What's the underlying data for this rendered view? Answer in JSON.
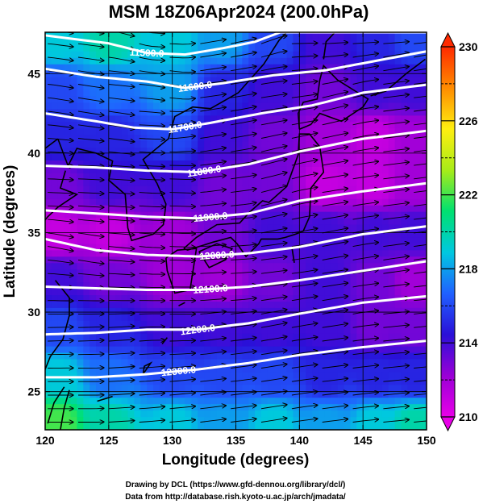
{
  "chart_data": {
    "type": "heatmap",
    "title": "MSM 18Z06Apr2024 (200.0hPa)",
    "xlabel": "Longitude (degrees)",
    "ylabel": "Latitude  (degrees)",
    "xlim": [
      120,
      150
    ],
    "ylim": [
      22.6,
      47.6
    ],
    "x_ticks": [
      "120",
      "125",
      "130",
      "135",
      "140",
      "145",
      "150"
    ],
    "y_ticks": [
      "25",
      "30",
      "35",
      "40",
      "45"
    ],
    "colorbar": {
      "range": [
        210,
        230
      ],
      "ticks": [
        "210",
        "214",
        "218",
        "222",
        "226",
        "230"
      ],
      "colors": [
        "#e800e8",
        "#9a00d6",
        "#2a10d8",
        "#2060ff",
        "#00c8e0",
        "#00e070",
        "#a8ec18",
        "#ffee10",
        "#ff8c00",
        "#ff2a00"
      ]
    },
    "contours": [
      {
        "label": "11500.0",
        "lon_at_label": 128.0,
        "points": [
          [
            120,
            47.4
          ],
          [
            125,
            46.9
          ],
          [
            128,
            46.3
          ],
          [
            131,
            46.2
          ],
          [
            134,
            46.6
          ],
          [
            136.5,
            47.0
          ],
          [
            138.5,
            47.6
          ]
        ]
      },
      {
        "label": "11600.0",
        "lon_at_label": 131.8,
        "points": [
          [
            120,
            45.3
          ],
          [
            124,
            44.8
          ],
          [
            128,
            44.5
          ],
          [
            131,
            44.1
          ],
          [
            134,
            44.4
          ],
          [
            138,
            44.9
          ],
          [
            142,
            45.2
          ],
          [
            146,
            45.8
          ],
          [
            150,
            46.4
          ]
        ]
      },
      {
        "label": "11700.0",
        "lon_at_label": 131.0,
        "points": [
          [
            120,
            42.5
          ],
          [
            124,
            42.0
          ],
          [
            127,
            41.6
          ],
          [
            130,
            41.5
          ],
          [
            133,
            41.9
          ],
          [
            137,
            42.5
          ],
          [
            141,
            43.0
          ],
          [
            145,
            43.8
          ],
          [
            150,
            44.3
          ]
        ]
      },
      {
        "label": "11800.0",
        "lon_at_label": 132.5,
        "points": [
          [
            120,
            39.2
          ],
          [
            124,
            39.1
          ],
          [
            128,
            38.9
          ],
          [
            132,
            38.8
          ],
          [
            136,
            39.3
          ],
          [
            140,
            40.1
          ],
          [
            145,
            40.9
          ],
          [
            150,
            41.4
          ]
        ]
      },
      {
        "label": "11900.0",
        "lon_at_label": 133.0,
        "points": [
          [
            120,
            36.4
          ],
          [
            124,
            36.2
          ],
          [
            128,
            36.0
          ],
          [
            132,
            35.9
          ],
          [
            136,
            36.2
          ],
          [
            140,
            37.0
          ],
          [
            145,
            37.6
          ],
          [
            150,
            38.1
          ]
        ]
      },
      {
        "label": "12000.0",
        "lon_at_label": 133.5,
        "points": [
          [
            120,
            34.6
          ],
          [
            124,
            33.9
          ],
          [
            128,
            33.6
          ],
          [
            132,
            33.5
          ],
          [
            136,
            33.7
          ],
          [
            140,
            34.1
          ],
          [
            145,
            34.9
          ],
          [
            150,
            35.4
          ]
        ]
      },
      {
        "label": "12100.0",
        "lon_at_label": 133.0,
        "points": [
          [
            120,
            31.6
          ],
          [
            124,
            31.5
          ],
          [
            128,
            31.4
          ],
          [
            132,
            31.4
          ],
          [
            136,
            31.6
          ],
          [
            140,
            32.0
          ],
          [
            145,
            32.6
          ],
          [
            150,
            33.2
          ]
        ]
      },
      {
        "label": "12200.0",
        "lon_at_label": 132.0,
        "points": [
          [
            120,
            28.6
          ],
          [
            124,
            28.7
          ],
          [
            128,
            28.9
          ],
          [
            132,
            28.9
          ],
          [
            136,
            29.3
          ],
          [
            140,
            29.9
          ],
          [
            145,
            30.6
          ],
          [
            150,
            31.0
          ]
        ]
      },
      {
        "label": "12300.0",
        "lon_at_label": 130.5,
        "points": [
          [
            120,
            25.9
          ],
          [
            124,
            25.9
          ],
          [
            128,
            26.1
          ],
          [
            132,
            26.4
          ],
          [
            136,
            26.8
          ],
          [
            140,
            27.3
          ],
          [
            145,
            27.8
          ],
          [
            150,
            28.2
          ]
        ]
      }
    ],
    "color_field": [
      {
        "lon": 121,
        "lat": 47,
        "value": 219
      },
      {
        "lon": 125,
        "lat": 47,
        "value": 220
      },
      {
        "lon": 130,
        "lat": 47,
        "value": 219
      },
      {
        "lon": 134,
        "lat": 47,
        "value": 218
      },
      {
        "lon": 138,
        "lat": 47,
        "value": 216
      },
      {
        "lon": 142,
        "lat": 47,
        "value": 214
      },
      {
        "lon": 146,
        "lat": 47,
        "value": 215
      },
      {
        "lon": 149,
        "lat": 47,
        "value": 216
      },
      {
        "lon": 121,
        "lat": 44,
        "value": 216
      },
      {
        "lon": 125,
        "lat": 44,
        "value": 217
      },
      {
        "lon": 130,
        "lat": 44,
        "value": 218
      },
      {
        "lon": 134,
        "lat": 44,
        "value": 215
      },
      {
        "lon": 138,
        "lat": 44,
        "value": 214
      },
      {
        "lon": 142,
        "lat": 44,
        "value": 213
      },
      {
        "lon": 146,
        "lat": 44,
        "value": 214
      },
      {
        "lon": 149,
        "lat": 44,
        "value": 214
      },
      {
        "lon": 121,
        "lat": 41,
        "value": 215
      },
      {
        "lon": 125,
        "lat": 41,
        "value": 215
      },
      {
        "lon": 130,
        "lat": 41,
        "value": 216
      },
      {
        "lon": 134,
        "lat": 41,
        "value": 214
      },
      {
        "lon": 138,
        "lat": 41,
        "value": 213
      },
      {
        "lon": 142,
        "lat": 41,
        "value": 212
      },
      {
        "lon": 146,
        "lat": 41,
        "value": 211
      },
      {
        "lon": 149,
        "lat": 41,
        "value": 212
      },
      {
        "lon": 121,
        "lat": 38,
        "value": 213
      },
      {
        "lon": 125,
        "lat": 38,
        "value": 214
      },
      {
        "lon": 130,
        "lat": 38,
        "value": 214
      },
      {
        "lon": 134,
        "lat": 38,
        "value": 213
      },
      {
        "lon": 138,
        "lat": 38,
        "value": 213
      },
      {
        "lon": 142,
        "lat": 38,
        "value": 211
      },
      {
        "lon": 146,
        "lat": 38,
        "value": 211
      },
      {
        "lon": 149,
        "lat": 38,
        "value": 212
      },
      {
        "lon": 121,
        "lat": 35,
        "value": 211
      },
      {
        "lon": 125,
        "lat": 35,
        "value": 211
      },
      {
        "lon": 130,
        "lat": 35,
        "value": 212
      },
      {
        "lon": 134,
        "lat": 35,
        "value": 213
      },
      {
        "lon": 138,
        "lat": 35,
        "value": 214
      },
      {
        "lon": 142,
        "lat": 35,
        "value": 214
      },
      {
        "lon": 146,
        "lat": 35,
        "value": 214
      },
      {
        "lon": 149,
        "lat": 35,
        "value": 214
      },
      {
        "lon": 121,
        "lat": 32,
        "value": 214
      },
      {
        "lon": 125,
        "lat": 32,
        "value": 213
      },
      {
        "lon": 130,
        "lat": 32,
        "value": 212
      },
      {
        "lon": 134,
        "lat": 32,
        "value": 212
      },
      {
        "lon": 138,
        "lat": 32,
        "value": 213
      },
      {
        "lon": 142,
        "lat": 32,
        "value": 214
      },
      {
        "lon": 146,
        "lat": 32,
        "value": 213
      },
      {
        "lon": 149,
        "lat": 32,
        "value": 212
      },
      {
        "lon": 121,
        "lat": 29,
        "value": 216
      },
      {
        "lon": 125,
        "lat": 29,
        "value": 215
      },
      {
        "lon": 130,
        "lat": 29,
        "value": 214
      },
      {
        "lon": 134,
        "lat": 29,
        "value": 214
      },
      {
        "lon": 138,
        "lat": 29,
        "value": 214
      },
      {
        "lon": 142,
        "lat": 29,
        "value": 214
      },
      {
        "lon": 146,
        "lat": 29,
        "value": 213
      },
      {
        "lon": 149,
        "lat": 29,
        "value": 213
      },
      {
        "lon": 121,
        "lat": 26,
        "value": 219
      },
      {
        "lon": 125,
        "lat": 26,
        "value": 217
      },
      {
        "lon": 130,
        "lat": 26,
        "value": 216
      },
      {
        "lon": 134,
        "lat": 26,
        "value": 216
      },
      {
        "lon": 138,
        "lat": 26,
        "value": 216
      },
      {
        "lon": 142,
        "lat": 26,
        "value": 215
      },
      {
        "lon": 146,
        "lat": 26,
        "value": 215
      },
      {
        "lon": 149,
        "lat": 26,
        "value": 215
      },
      {
        "lon": 121,
        "lat": 23,
        "value": 222
      },
      {
        "lon": 125,
        "lat": 23,
        "value": 220
      },
      {
        "lon": 130,
        "lat": 23,
        "value": 219
      },
      {
        "lon": 134,
        "lat": 23,
        "value": 218
      },
      {
        "lon": 138,
        "lat": 23,
        "value": 219
      },
      {
        "lon": 142,
        "lat": 23,
        "value": 218
      },
      {
        "lon": 146,
        "lat": 23,
        "value": 219
      },
      {
        "lon": 149,
        "lat": 23,
        "value": 220
      }
    ],
    "grid": true
  },
  "footer": {
    "line1": "Drawing by DCL (https://www.gfd-dennou.org/library/dcl/)",
    "line2": "Data from http://database.rish.kyoto-u.ac.jp/arch/jmadata/"
  }
}
